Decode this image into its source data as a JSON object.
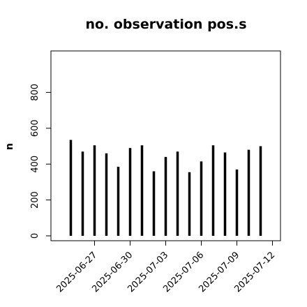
{
  "chart_data": {
    "type": "bar",
    "title": "no. observation pos.s",
    "xlabel": "",
    "ylabel": "n",
    "ylim": [
      0,
      1000
    ],
    "yticks": [
      "0",
      "200",
      "400",
      "600",
      "800"
    ],
    "grid": false,
    "categories": [
      "2025-06-25",
      "2025-06-26",
      "2025-06-27",
      "2025-06-28",
      "2025-06-29",
      "2025-06-30",
      "2025-07-01",
      "2025-07-02",
      "2025-07-03",
      "2025-07-04",
      "2025-07-05",
      "2025-07-06",
      "2025-07-07",
      "2025-07-08",
      "2025-07-09",
      "2025-07-10",
      "2025-07-11",
      "2025-07-12",
      "2025-07-13"
    ],
    "values": [
      535,
      470,
      505,
      460,
      385,
      490,
      505,
      360,
      440,
      470,
      355,
      415,
      505,
      465,
      370,
      480,
      500,
      0,
      0
    ],
    "xtick_labels": [
      {
        "text": "2025-06-27",
        "date": "2025-06-27",
        "color": "#000000"
      },
      {
        "text": "2025-06-30",
        "date": "2025-06-30",
        "color": "#000000"
      },
      {
        "text": "2025-07-03",
        "date": "2025-07-03",
        "color": "#228B22"
      },
      {
        "text": "2025-07-06",
        "date": "2025-07-06",
        "color": "#000000"
      },
      {
        "text": "2025-07-09",
        "date": "2025-07-09",
        "color": "#000000"
      },
      {
        "text": "2025-07-12",
        "date": "2025-07-12",
        "color": "#000000"
      }
    ],
    "bar_color": "#000000"
  }
}
